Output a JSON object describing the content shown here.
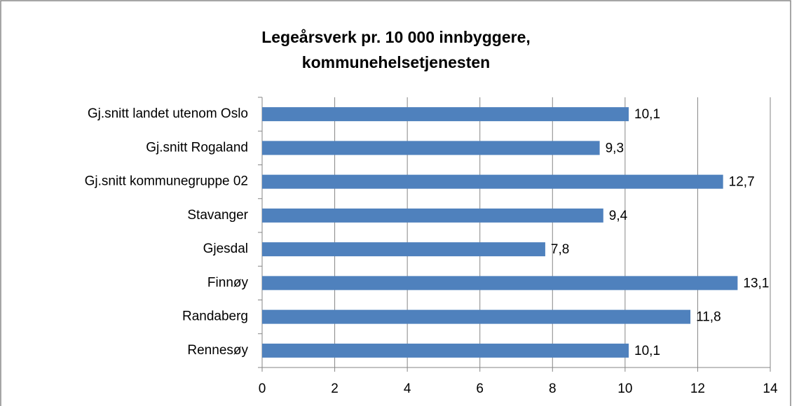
{
  "chart_data": {
    "type": "hbar",
    "title": [
      "Legeårsverk pr. 10 000 innbyggere,",
      "kommunehelsetjenesten"
    ],
    "categories": [
      "Gj.snitt landet utenom Oslo",
      "Gj.snitt Rogaland",
      "Gj.snitt kommunegruppe 02",
      "Stavanger",
      "Gjesdal",
      "Finnøy",
      "Randaberg",
      "Rennesøy"
    ],
    "values": [
      10.1,
      9.3,
      12.7,
      9.4,
      7.8,
      13.1,
      11.8,
      10.1
    ],
    "value_labels": [
      "10,1",
      "9,3",
      "12,7",
      "9,4",
      "7,8",
      "13,1",
      "11,8",
      "10,1"
    ],
    "color": "#4f81bd",
    "xlim": [
      0,
      14
    ],
    "xticks": [
      0,
      2,
      4,
      6,
      8,
      10,
      12,
      14
    ],
    "grid": true
  }
}
